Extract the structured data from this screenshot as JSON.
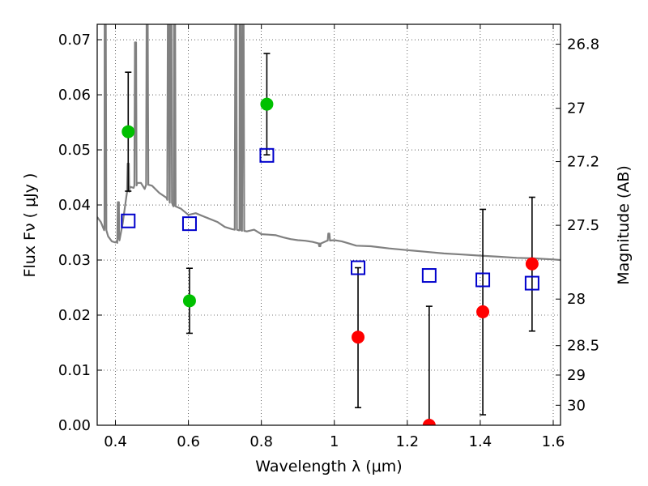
{
  "chart_data": {
    "type": "scatter",
    "title": "",
    "xlabel": "Wavelength  λ (μm)",
    "ylabel": "Flux  Fν  ( μJy )",
    "y2label": "Magnitude (AB)",
    "xlim": [
      0.35,
      1.62
    ],
    "ylim": [
      0.0,
      0.0728
    ],
    "grid": true,
    "x_ticks": [
      {
        "value": 0.4,
        "label": "0.4"
      },
      {
        "value": 0.6,
        "label": "0.6"
      },
      {
        "value": 0.8,
        "label": "0.8"
      },
      {
        "value": 1.0,
        "label": "1"
      },
      {
        "value": 1.2,
        "label": "1.2"
      },
      {
        "value": 1.4,
        "label": "1.4"
      },
      {
        "value": 1.6,
        "label": "1.6"
      }
    ],
    "y_ticks": [
      {
        "value": 0.0,
        "label": "0.00"
      },
      {
        "value": 0.01,
        "label": "0.01"
      },
      {
        "value": 0.02,
        "label": "0.02"
      },
      {
        "value": 0.03,
        "label": "0.03"
      },
      {
        "value": 0.04,
        "label": "0.04"
      },
      {
        "value": 0.05,
        "label": "0.05"
      },
      {
        "value": 0.06,
        "label": "0.06"
      },
      {
        "value": 0.07,
        "label": "0.07"
      }
    ],
    "mag_ticks": [
      {
        "mag": 26.8,
        "label": "26.8"
      },
      {
        "mag": 27.0,
        "label": "27"
      },
      {
        "mag": 27.2,
        "label": "27.2"
      },
      {
        "mag": 27.5,
        "label": "27.5"
      },
      {
        "mag": 28.0,
        "label": "28"
      },
      {
        "mag": 28.5,
        "label": "28.5"
      },
      {
        "mag": 29.0,
        "label": "29"
      },
      {
        "mag": 30.0,
        "label": "30"
      }
    ],
    "colors": {
      "model": "#808080",
      "detected": "#00c000",
      "upper_limit": "#ff0000",
      "model_photometry": "#0000cc",
      "errorbar": "#000000"
    },
    "model_spectrum": {
      "x": [
        0.35,
        0.36,
        0.37,
        0.38,
        0.39,
        0.4,
        0.405,
        0.41,
        0.42,
        0.43,
        0.44,
        0.45,
        0.46,
        0.47,
        0.48,
        0.49,
        0.5,
        0.52,
        0.54,
        0.56,
        0.58,
        0.6,
        0.62,
        0.65,
        0.68,
        0.7,
        0.72,
        0.74,
        0.76,
        0.78,
        0.8,
        0.82,
        0.84,
        0.86,
        0.88,
        0.9,
        0.92,
        0.94,
        0.96,
        0.98,
        1.0,
        1.02,
        1.04,
        1.06,
        1.1,
        1.15,
        1.2,
        1.25,
        1.3,
        1.35,
        1.4,
        1.45,
        1.5,
        1.55,
        1.6,
        1.62
      ],
      "y": [
        0.0378,
        0.0369,
        0.0357,
        0.0343,
        0.0334,
        0.0332,
        0.0331,
        0.0339,
        0.0367,
        0.0415,
        0.0433,
        0.0431,
        0.044,
        0.044,
        0.0429,
        0.044,
        0.0435,
        0.0422,
        0.0413,
        0.0398,
        0.0393,
        0.0382,
        0.0385,
        0.0377,
        0.0369,
        0.036,
        0.0356,
        0.0354,
        0.0352,
        0.0355,
        0.0347,
        0.0346,
        0.0345,
        0.0341,
        0.0338,
        0.0336,
        0.0335,
        0.0333,
        0.033,
        0.0335,
        0.0336,
        0.0334,
        0.033,
        0.0326,
        0.0325,
        0.0321,
        0.0318,
        0.0315,
        0.0312,
        0.031,
        0.0308,
        0.0306,
        0.0304,
        0.0303,
        0.0301,
        0.03
      ]
    },
    "emission_lines": [
      {
        "x": 0.372,
        "peak": 0.0728
      },
      {
        "x": 0.408,
        "peak": 0.0405
      },
      {
        "x": 0.435,
        "peak": 0.0475
      },
      {
        "x": 0.455,
        "peak": 0.0695
      },
      {
        "x": 0.487,
        "peak": 0.0728
      },
      {
        "x": 0.545,
        "peak": 0.0728
      },
      {
        "x": 0.552,
        "peak": 0.0728
      },
      {
        "x": 0.562,
        "peak": 0.0728
      },
      {
        "x": 0.73,
        "peak": 0.0728
      },
      {
        "x": 0.742,
        "peak": 0.0728
      },
      {
        "x": 0.75,
        "peak": 0.0728
      },
      {
        "x": 0.96,
        "peak": 0.0325
      },
      {
        "x": 0.985,
        "peak": 0.0348
      }
    ],
    "series": [
      {
        "marker": "circle",
        "color": "#00c000",
        "x": [
          0.435,
          0.603,
          0.815
        ],
        "y": [
          0.0533,
          0.0226,
          0.0583
        ],
        "err_low": [
          0.0108,
          0.0059,
          0.0092
        ],
        "err_high": [
          0.0108,
          0.0059,
          0.0092
        ]
      },
      {
        "marker": "circle",
        "color": "#ff0000",
        "x": [
          1.065,
          1.26,
          1.407,
          1.542
        ],
        "y": [
          0.016,
          0.0,
          0.0206,
          0.0293
        ],
        "err_low": [
          0.0128,
          0.0,
          0.0187,
          0.0122
        ],
        "err_high": [
          0.0126,
          0.0216,
          0.0186,
          0.0121
        ]
      },
      {
        "marker": "open-square",
        "color": "#0000cc",
        "x": [
          0.435,
          0.603,
          0.815,
          1.065,
          1.26,
          1.407,
          1.542
        ],
        "y": [
          0.0371,
          0.0366,
          0.049,
          0.0286,
          0.0272,
          0.0264,
          0.0258
        ]
      }
    ]
  }
}
